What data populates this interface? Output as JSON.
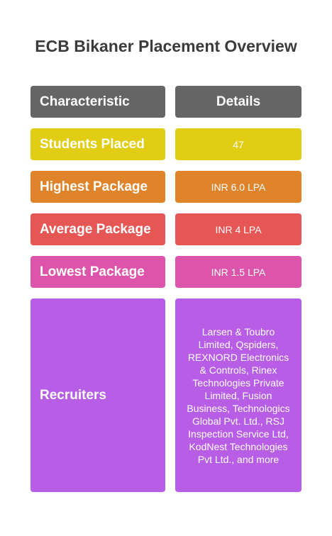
{
  "title": "ECB Bikaner Placement Overview",
  "header": {
    "characteristic": "Characteristic",
    "details": "Details"
  },
  "rows": [
    {
      "label": "Students Placed",
      "value": "47",
      "color": "#e0cd14"
    },
    {
      "label": "Highest Package",
      "value": "INR 6.0 LPA",
      "color": "#e0842c"
    },
    {
      "label": "Average Package",
      "value": "INR 4 LPA",
      "color": "#e55654"
    },
    {
      "label": "Lowest Package",
      "value": "INR 1.5 LPA",
      "color": "#dc55ab"
    },
    {
      "label": "Recruiters",
      "value": "Larsen & Toubro Limited, Qspiders, REXNORD Electronics & Controls, Rinex Technologies Private Limited, Fusion Business, Technologics Global Pvt. Ltd., RSJ Inspection Service Ltd, KodNest Technologies Pvt Ltd., and more",
      "color": "#b85de6"
    }
  ],
  "colors": {
    "header": "#656565",
    "title": "#3b3b3b"
  }
}
